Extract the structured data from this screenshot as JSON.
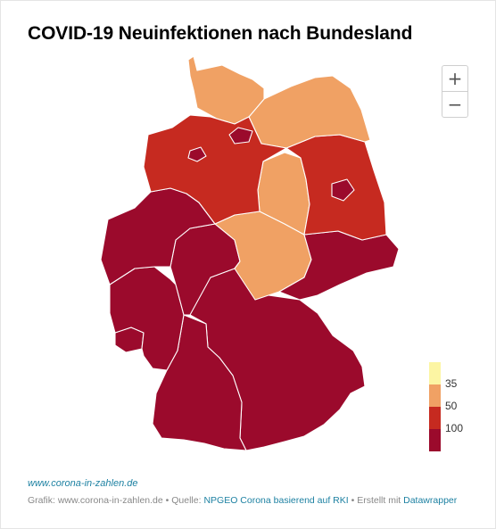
{
  "title": "COVID-19 Neuinfektionen nach Bundesland",
  "zoom": {
    "in_label": "+",
    "out_label": "−"
  },
  "legend": {
    "labels": [
      "35",
      "50",
      "100"
    ],
    "classes": [
      {
        "range": "< 35",
        "color": "#fcf5a3"
      },
      {
        "range": "35 – 50",
        "color": "#f0a164"
      },
      {
        "range": "50 – 100",
        "color": "#c62a20"
      },
      {
        "range": "> 100",
        "color": "#9b0a2c"
      }
    ]
  },
  "regions": [
    {
      "name": "Schleswig-Holstein",
      "class": 1
    },
    {
      "name": "Hamburg",
      "class": 3
    },
    {
      "name": "Mecklenburg-Vorpommern",
      "class": 1
    },
    {
      "name": "Bremen",
      "class": 3
    },
    {
      "name": "Niedersachsen",
      "class": 2
    },
    {
      "name": "Berlin",
      "class": 3
    },
    {
      "name": "Brandenburg",
      "class": 2
    },
    {
      "name": "Sachsen-Anhalt",
      "class": 1
    },
    {
      "name": "Thüringen",
      "class": 1
    },
    {
      "name": "Sachsen",
      "class": 3
    },
    {
      "name": "Nordrhein-Westfalen",
      "class": 3
    },
    {
      "name": "Hessen",
      "class": 3
    },
    {
      "name": "Rheinland-Pfalz",
      "class": 3
    },
    {
      "name": "Saarland",
      "class": 3
    },
    {
      "name": "Baden-Württemberg",
      "class": 3
    },
    {
      "name": "Bayern",
      "class": 3
    }
  ],
  "source_link": "www.corona-in-zahlen.de",
  "footer": {
    "prefix": "Grafik: www.corona-in-zahlen.de • Quelle: ",
    "source": "NPGEO Corona basierend auf RKI",
    "middle": " • Erstellt mit ",
    "tool": "Datawrapper"
  }
}
